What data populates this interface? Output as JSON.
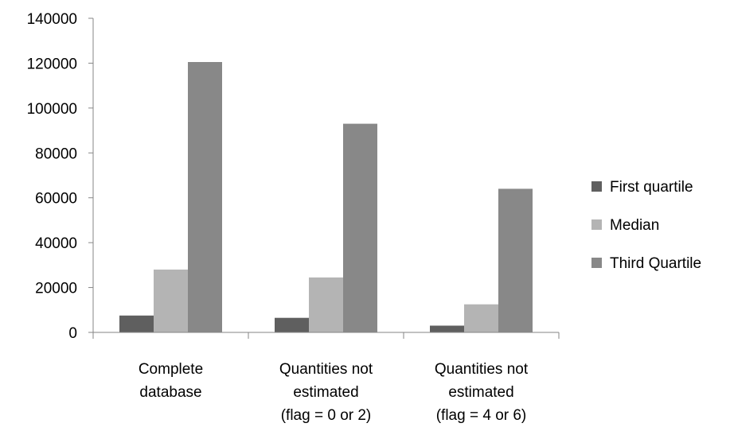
{
  "chart_data": {
    "type": "bar",
    "title": "",
    "xlabel": "",
    "ylabel": "",
    "categories": [
      [
        "Complete",
        "database"
      ],
      [
        "Quantities not",
        "estimated",
        "(flag = 0 or 2)"
      ],
      [
        "Quantities not",
        "estimated",
        "(flag = 4 or 6)"
      ]
    ],
    "series": [
      {
        "name": "First quartile",
        "color": "#5f5f5f",
        "values": [
          7500,
          6500,
          3000
        ]
      },
      {
        "name": "Median",
        "color": "#b4b4b4",
        "values": [
          28000,
          24500,
          12500
        ]
      },
      {
        "name": "Third Quartile",
        "color": "#888888",
        "values": [
          120500,
          93000,
          64000
        ]
      }
    ],
    "ylim": [
      0,
      140000
    ],
    "yticks": [
      0,
      20000,
      40000,
      60000,
      80000,
      100000,
      120000,
      140000
    ],
    "grid": false,
    "legend_position": "right"
  }
}
